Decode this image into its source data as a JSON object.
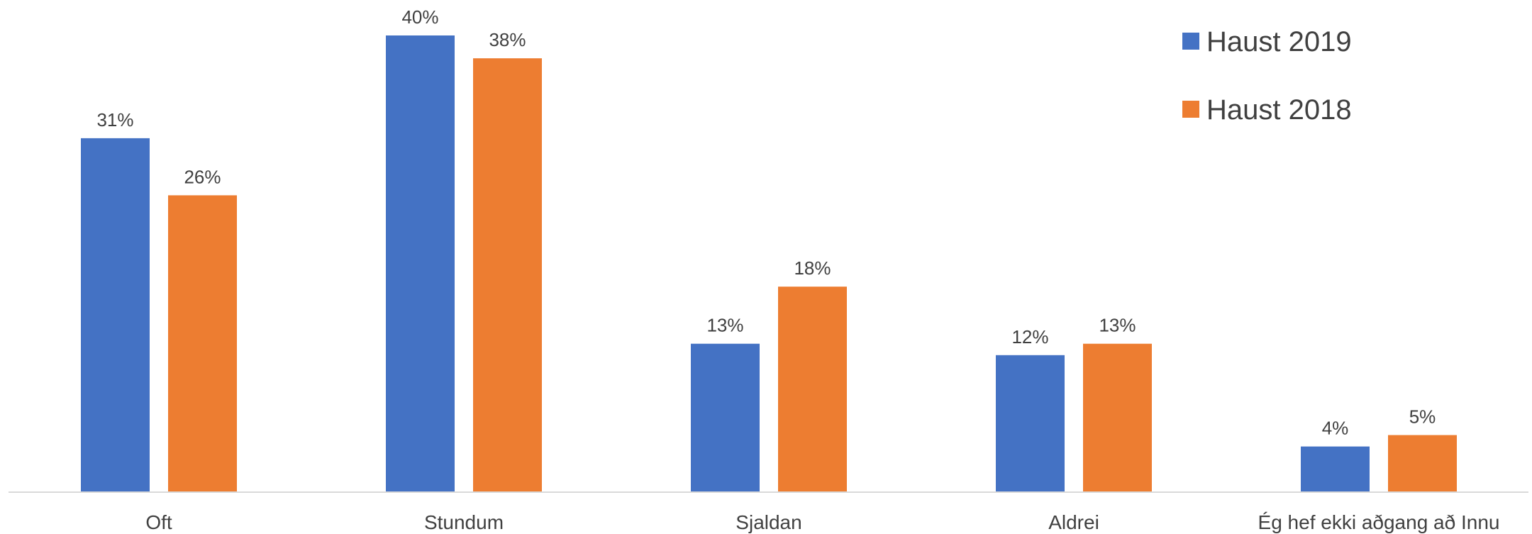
{
  "chart_data": {
    "type": "bar",
    "categories": [
      "Oft",
      "Stundum",
      "Sjaldan",
      "Aldrei",
      "Ég hef ekki aðgang að Innu"
    ],
    "series": [
      {
        "name": "Haust 2019",
        "values": [
          31,
          40,
          13,
          12,
          4
        ],
        "labels": [
          "31%",
          "40%",
          "13%",
          "12%",
          "4%"
        ],
        "color": "#4472C4"
      },
      {
        "name": "Haust 2018",
        "values": [
          26,
          38,
          18,
          13,
          5
        ],
        "labels": [
          "26%",
          "38%",
          "18%",
          "13%",
          "5%"
        ],
        "color": "#ED7D31"
      }
    ],
    "ylim": [
      0,
      40
    ],
    "grid": false,
    "legend_position": "top-right",
    "axis_color": "#D9D9D9"
  }
}
